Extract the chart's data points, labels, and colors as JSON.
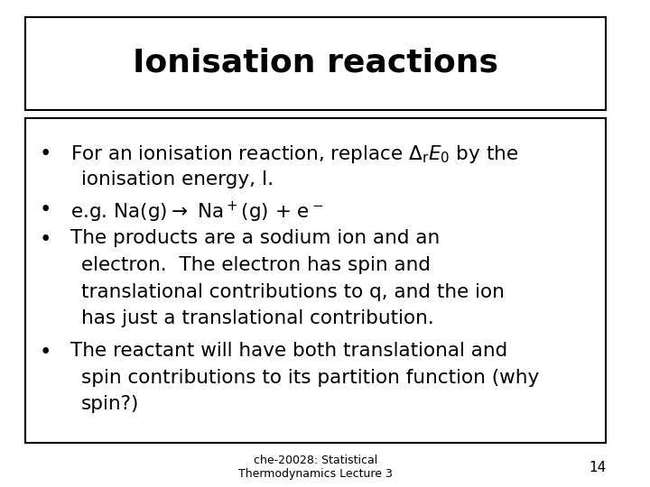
{
  "title": "Ionisation reactions",
  "title_fontsize": 26,
  "title_fontweight": "bold",
  "body_fontsize": 15.5,
  "footer_text": "che-20028: Statistical\nThermodynamics Lecture 3",
  "footer_number": "14",
  "background_color": "#ffffff",
  "box_edge_color": "#000000",
  "text_color": "#000000",
  "bullet1_line2": "ionisation energy, I.",
  "bullet3_lines": [
    "The products are a sodium ion and an",
    "electron.  The electron has spin and",
    "translational contributions to q, and the ion",
    "has just a translational contribution."
  ],
  "bullet4_lines": [
    "The reactant will have both translational and",
    "spin contributions to its partition function (why",
    "spin?)"
  ]
}
